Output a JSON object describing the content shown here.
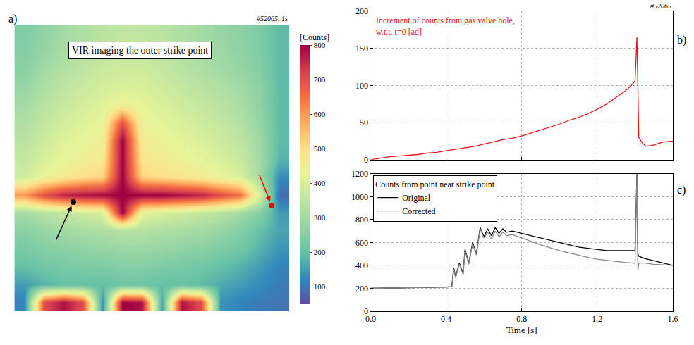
{
  "chart_data": [
    {
      "type": "heatmap",
      "panel": "a)",
      "tag": "#52065, 1s",
      "annotations": [
        "VIR imaging the outer strike point"
      ],
      "x": [
        0,
        1,
        2,
        3,
        4,
        5,
        6,
        7,
        8,
        9,
        10,
        11,
        12,
        13
      ],
      "y": [
        0,
        1,
        2,
        3,
        4,
        5,
        6,
        7,
        8,
        9,
        10,
        11,
        12,
        13,
        14,
        15
      ],
      "z": [
        [
          120,
          700,
          780,
          700,
          130,
          800,
          780,
          150,
          780,
          700,
          140,
          120,
          110,
          100
        ],
        [
          150,
          180,
          200,
          200,
          200,
          210,
          210,
          200,
          200,
          190,
          170,
          150,
          130,
          110
        ],
        [
          200,
          220,
          230,
          240,
          240,
          250,
          250,
          240,
          230,
          220,
          200,
          180,
          150,
          120
        ],
        [
          230,
          250,
          260,
          270,
          280,
          290,
          290,
          280,
          270,
          260,
          240,
          220,
          180,
          140
        ],
        [
          260,
          280,
          300,
          310,
          320,
          330,
          330,
          320,
          310,
          300,
          280,
          250,
          200,
          160
        ],
        [
          300,
          340,
          360,
          380,
          400,
          800,
          420,
          400,
          380,
          360,
          340,
          300,
          250,
          150
        ],
        [
          600,
          700,
          760,
          780,
          790,
          800,
          800,
          800,
          780,
          760,
          700,
          650,
          400,
          90
        ],
        [
          380,
          430,
          470,
          500,
          520,
          800,
          520,
          500,
          480,
          460,
          430,
          400,
          300,
          130
        ],
        [
          360,
          400,
          430,
          450,
          470,
          800,
          480,
          460,
          440,
          420,
          400,
          370,
          300,
          180
        ],
        [
          340,
          380,
          410,
          430,
          450,
          800,
          460,
          440,
          420,
          400,
          380,
          350,
          290,
          190
        ],
        [
          320,
          360,
          390,
          410,
          430,
          700,
          440,
          420,
          400,
          380,
          360,
          330,
          280,
          190
        ],
        [
          300,
          340,
          370,
          390,
          410,
          450,
          420,
          400,
          380,
          360,
          340,
          310,
          270,
          190
        ],
        [
          280,
          320,
          350,
          370,
          390,
          400,
          400,
          380,
          360,
          340,
          320,
          300,
          260,
          190
        ],
        [
          260,
          300,
          330,
          350,
          370,
          380,
          380,
          360,
          340,
          320,
          300,
          280,
          250,
          190
        ],
        [
          250,
          280,
          310,
          330,
          350,
          360,
          360,
          350,
          330,
          310,
          290,
          270,
          240,
          190
        ],
        [
          240,
          270,
          300,
          320,
          340,
          350,
          350,
          340,
          320,
          300,
          280,
          260,
          240,
          190
        ]
      ],
      "xlim": [
        -0.5,
        13.5
      ],
      "ylim": [
        -0.5,
        15.5
      ],
      "tick_labels": false,
      "colorbar_title": "[Counts]",
      "colorbar_range": [
        50,
        800
      ],
      "colorbar_ticks": [
        100,
        200,
        300,
        400,
        500,
        600,
        700,
        800
      ],
      "points": [
        {
          "x": 2.5,
          "y": 5.6,
          "color": "black"
        },
        {
          "x": 12.6,
          "y": 5.4,
          "color": "red"
        }
      ]
    },
    {
      "type": "line",
      "panel": "b)",
      "tag": "#52065",
      "annotations": [
        "Increment of counts from gas valve hole,",
        "w.r.t. t=0 [ad]"
      ],
      "x": [
        0,
        0.05,
        0.1,
        0.15,
        0.2,
        0.25,
        0.3,
        0.35,
        0.4,
        0.45,
        0.5,
        0.55,
        0.6,
        0.65,
        0.7,
        0.75,
        0.8,
        0.85,
        0.9,
        0.95,
        1.0,
        1.05,
        1.1,
        1.15,
        1.2,
        1.25,
        1.3,
        1.35,
        1.38,
        1.4,
        1.41,
        1.42,
        1.44,
        1.46,
        1.5,
        1.55,
        1.6
      ],
      "series": [
        {
          "color": "#e8141c",
          "values": [
            0,
            2,
            4,
            5,
            6,
            7,
            9,
            10,
            12,
            14,
            16,
            18,
            21,
            24,
            27,
            29,
            32,
            36,
            40,
            44,
            48,
            53,
            57,
            62,
            68,
            75,
            84,
            93,
            100,
            106,
            165,
            30,
            22,
            18,
            20,
            24,
            25
          ]
        }
      ],
      "xlim": [
        0,
        1.6
      ],
      "xticks": [
        0,
        0.4,
        0.8,
        1.2,
        1.6
      ],
      "ylim": [
        0,
        200
      ],
      "yticks": [
        0,
        50,
        100,
        150,
        200
      ],
      "grid": true,
      "tick_labels": "y"
    },
    {
      "type": "line",
      "panel": "c)",
      "x_label": "Time [s]",
      "legend": "upper left",
      "legend_title": "Counts from point near strike point",
      "x": [
        0,
        0.1,
        0.2,
        0.3,
        0.4,
        0.43,
        0.44,
        0.45,
        0.47,
        0.49,
        0.5,
        0.52,
        0.54,
        0.56,
        0.58,
        0.6,
        0.62,
        0.64,
        0.66,
        0.68,
        0.7,
        0.72,
        0.75,
        0.8,
        0.85,
        0.9,
        0.95,
        1.0,
        1.05,
        1.1,
        1.15,
        1.2,
        1.25,
        1.3,
        1.35,
        1.4,
        1.41,
        1.415,
        1.42,
        1.45,
        1.5,
        1.55,
        1.6
      ],
      "series": [
        {
          "name": "Original",
          "color": "#000000",
          "values": [
            200,
            202,
            205,
            208,
            212,
            215,
            380,
            300,
            420,
            330,
            540,
            420,
            600,
            500,
            730,
            650,
            720,
            660,
            730,
            680,
            720,
            690,
            700,
            680,
            660,
            640,
            620,
            600,
            580,
            560,
            550,
            540,
            530,
            530,
            530,
            530,
            1200,
            500,
            480,
            460,
            440,
            420,
            400
          ]
        },
        {
          "name": "Corrected",
          "color": "#888888",
          "values": [
            200,
            202,
            205,
            208,
            212,
            215,
            370,
            290,
            410,
            320,
            530,
            410,
            590,
            490,
            720,
            640,
            690,
            630,
            700,
            650,
            690,
            660,
            670,
            640,
            610,
            580,
            555,
            530,
            510,
            490,
            470,
            455,
            445,
            435,
            425,
            420,
            1200,
            360,
            420,
            420,
            410,
            405,
            400
          ]
        }
      ],
      "xlim": [
        0,
        1.6
      ],
      "xticks": [
        {
          "value": 0,
          "label": "0.0"
        },
        0.4,
        0.8,
        1.2,
        1.6
      ],
      "ylim": [
        0,
        1200
      ],
      "yticks": [
        0,
        200,
        400,
        600,
        800,
        1000,
        1200
      ],
      "grid": true
    }
  ]
}
